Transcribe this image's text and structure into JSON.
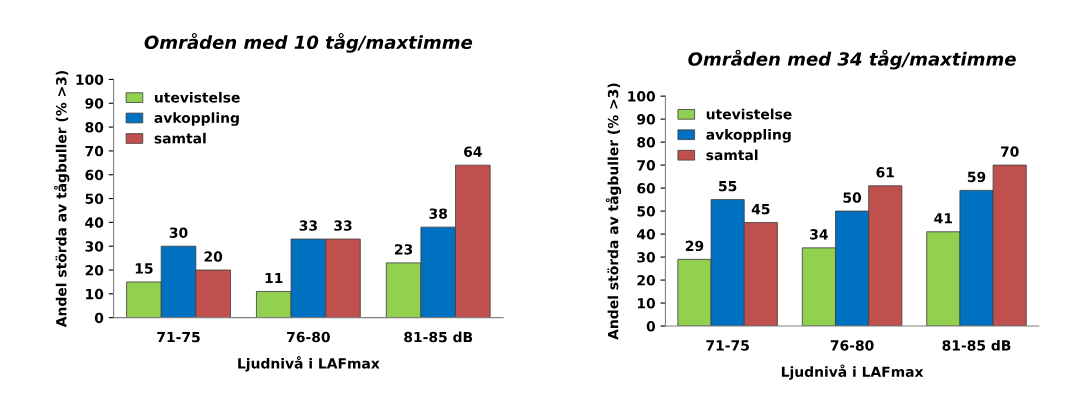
{
  "chart_data": [
    {
      "type": "bar",
      "title": "Områden med 10 tåg/maxtimme",
      "xlabel": "Ljudnivå i LAFmax",
      "ylabel": "Andel störda av tågbuller (% >3)",
      "categories": [
        "71-75",
        "76-80",
        "81-85 dB"
      ],
      "series": [
        {
          "name": "utevistelse",
          "color": "#92d050",
          "values": [
            15,
            11,
            23
          ]
        },
        {
          "name": "avkoppling",
          "color": "#0070c0",
          "values": [
            30,
            33,
            38
          ]
        },
        {
          "name": "samtal",
          "color": "#c0504d",
          "values": [
            20,
            33,
            64
          ]
        }
      ],
      "ylim": [
        0,
        100
      ],
      "yticks": [
        0,
        10,
        20,
        30,
        40,
        50,
        60,
        70,
        80,
        90,
        100
      ],
      "data_labels": true,
      "legend": "top left",
      "grid": false
    },
    {
      "type": "bar",
      "title": "Områden med 34 tåg/maxtimme",
      "xlabel": "Ljudnivå i LAFmax",
      "ylabel": "Andel störda av tågbuller (% >3)",
      "categories": [
        "71-75",
        "76-80",
        "81-85 dB"
      ],
      "series": [
        {
          "name": "utevistelse",
          "color": "#92d050",
          "values": [
            29,
            34,
            41
          ]
        },
        {
          "name": "avkoppling",
          "color": "#0070c0",
          "values": [
            55,
            50,
            59
          ]
        },
        {
          "name": "samtal",
          "color": "#c0504d",
          "values": [
            45,
            61,
            70
          ]
        }
      ],
      "ylim": [
        0,
        100
      ],
      "yticks": [
        0,
        10,
        20,
        30,
        40,
        50,
        60,
        70,
        80,
        90,
        100
      ],
      "data_labels": true,
      "legend": "top left",
      "grid": false
    }
  ]
}
